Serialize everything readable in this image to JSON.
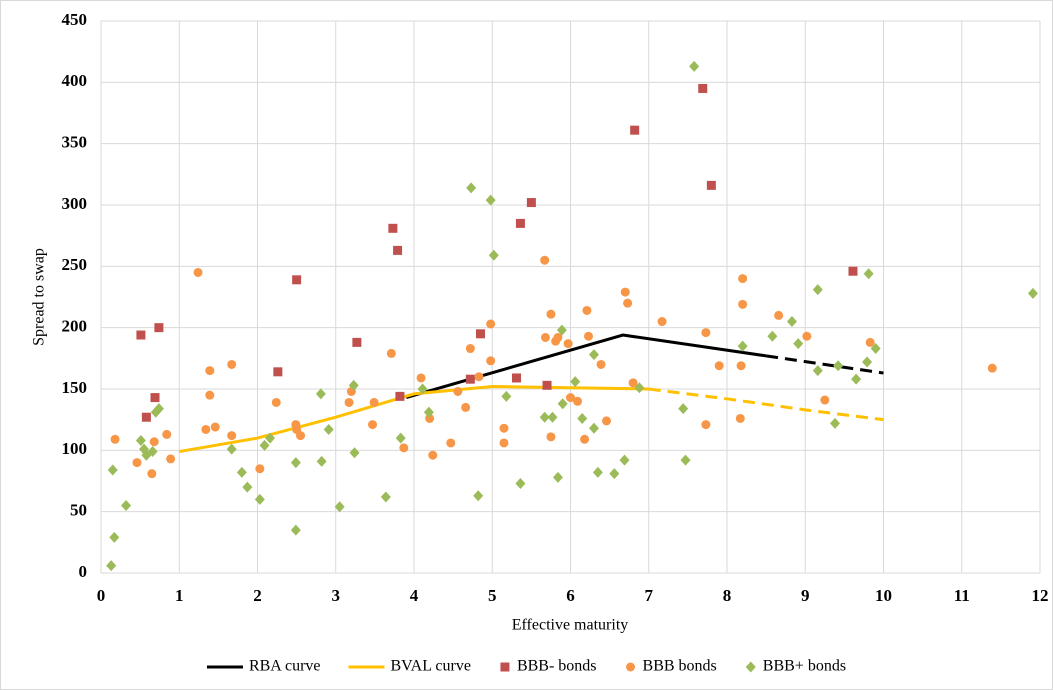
{
  "chart_data": {
    "type": "scatter",
    "x_label": "Effective maturity",
    "y_label": "Spread to swap",
    "xlim": [
      0,
      12
    ],
    "xticks": [
      0,
      1,
      2,
      3,
      4,
      5,
      6,
      7,
      8,
      9,
      10,
      11,
      12
    ],
    "ylim": [
      0,
      450
    ],
    "yticks": [
      0,
      50,
      100,
      150,
      200,
      250,
      300,
      350,
      400,
      450
    ],
    "grid": true,
    "legend": "bottom",
    "series": [
      {
        "name": "RBA curve",
        "kind": "line",
        "color": "#000000",
        "x": [
          3.9,
          6.67,
          8.5,
          10
        ],
        "values": [
          143,
          194,
          177,
          163
        ],
        "segment_styles": [
          "solid",
          "solid",
          "dashed"
        ]
      },
      {
        "name": "BVAL curve",
        "kind": "line",
        "color": "#ffc000",
        "x": [
          1,
          2,
          3,
          4,
          5,
          6,
          7,
          8,
          9,
          10
        ],
        "values": [
          99,
          110,
          127,
          146,
          152,
          151,
          150,
          142,
          133,
          125
        ],
        "segment_styles": [
          "solid",
          "solid",
          "solid",
          "solid",
          "solid",
          "solid",
          "dashed",
          "dashed",
          "dashed"
        ]
      },
      {
        "name": "BBB- bonds",
        "kind": "scatter",
        "marker": "square",
        "color": "#c0504d",
        "x": [
          0.51,
          0.58,
          0.69,
          0.74,
          2.26,
          2.5,
          3.27,
          3.73,
          3.79,
          3.82,
          4.72,
          4.85,
          5.31,
          5.36,
          5.5,
          5.7,
          6.82,
          7.69,
          7.8,
          9.61
        ],
        "values": [
          194,
          127,
          143,
          200,
          164,
          239,
          188,
          281,
          263,
          144,
          158,
          195,
          159,
          285,
          302,
          153,
          361,
          395,
          316,
          246
        ]
      },
      {
        "name": "BBB bonds",
        "kind": "scatter",
        "marker": "circle",
        "color": "#f79646",
        "x": [
          0.18,
          0.46,
          0.65,
          0.68,
          0.84,
          0.89,
          1.24,
          1.34,
          1.39,
          1.39,
          1.46,
          1.67,
          1.67,
          2.03,
          2.24,
          2.49,
          2.5,
          2.55,
          3.17,
          3.2,
          3.47,
          3.49,
          3.71,
          3.87,
          4.09,
          4.2,
          4.24,
          4.47,
          4.56,
          4.66,
          4.72,
          4.83,
          4.98,
          4.98,
          5.15,
          5.15,
          5.67,
          5.68,
          5.75,
          5.75,
          5.81,
          5.84,
          5.97,
          6.0,
          6.09,
          6.18,
          6.21,
          6.23,
          6.39,
          6.46,
          6.7,
          6.73,
          6.8,
          7.17,
          7.73,
          7.73,
          7.9,
          8.17,
          8.18,
          8.2,
          8.2,
          8.66,
          9.02,
          9.25,
          9.83,
          11.39
        ],
        "values": [
          109,
          90,
          81,
          107,
          113,
          93,
          245,
          117,
          165,
          145,
          119,
          170,
          112,
          85,
          139,
          121,
          117,
          112,
          139,
          148,
          121,
          139,
          179,
          102,
          159,
          126,
          96,
          106,
          148,
          135,
          183,
          160,
          203,
          173,
          106,
          118,
          255,
          192,
          211,
          111,
          189,
          192,
          187,
          143,
          140,
          109,
          214,
          193,
          170,
          124,
          229,
          220,
          155,
          205,
          196,
          121,
          169,
          126,
          169,
          240,
          219,
          210,
          193,
          141,
          188,
          167
        ]
      },
      {
        "name": "BBB+ bonds",
        "kind": "scatter",
        "marker": "diamond",
        "color": "#9bbb59",
        "x": [
          0.13,
          0.15,
          0.17,
          0.32,
          0.51,
          0.55,
          0.58,
          0.66,
          0.7,
          0.74,
          1.67,
          1.8,
          1.87,
          2.03,
          2.09,
          2.16,
          2.49,
          2.49,
          2.81,
          2.82,
          2.91,
          3.05,
          3.23,
          3.24,
          3.64,
          3.83,
          4.11,
          4.19,
          4.73,
          4.82,
          4.98,
          5.02,
          5.18,
          5.36,
          5.67,
          5.77,
          5.84,
          5.89,
          5.9,
          6.06,
          6.15,
          6.3,
          6.3,
          6.35,
          6.56,
          6.69,
          6.88,
          7.44,
          7.47,
          7.58,
          8.2,
          8.58,
          8.83,
          8.91,
          9.16,
          9.16,
          9.38,
          9.42,
          9.65,
          9.79,
          9.81,
          9.9,
          11.91
        ],
        "values": [
          6,
          84,
          29,
          55,
          108,
          101,
          96,
          99,
          131,
          134,
          101,
          82,
          70,
          60,
          104,
          110,
          90,
          35,
          146,
          91,
          117,
          54,
          153,
          98,
          62,
          110,
          150,
          131,
          314,
          63,
          304,
          259,
          144,
          73,
          127,
          127,
          78,
          198,
          138,
          156,
          126,
          178,
          118,
          82,
          81,
          92,
          151,
          134,
          92,
          413,
          185,
          193,
          205,
          187,
          231,
          165,
          122,
          169,
          158,
          172,
          244,
          183,
          228
        ]
      }
    ]
  }
}
